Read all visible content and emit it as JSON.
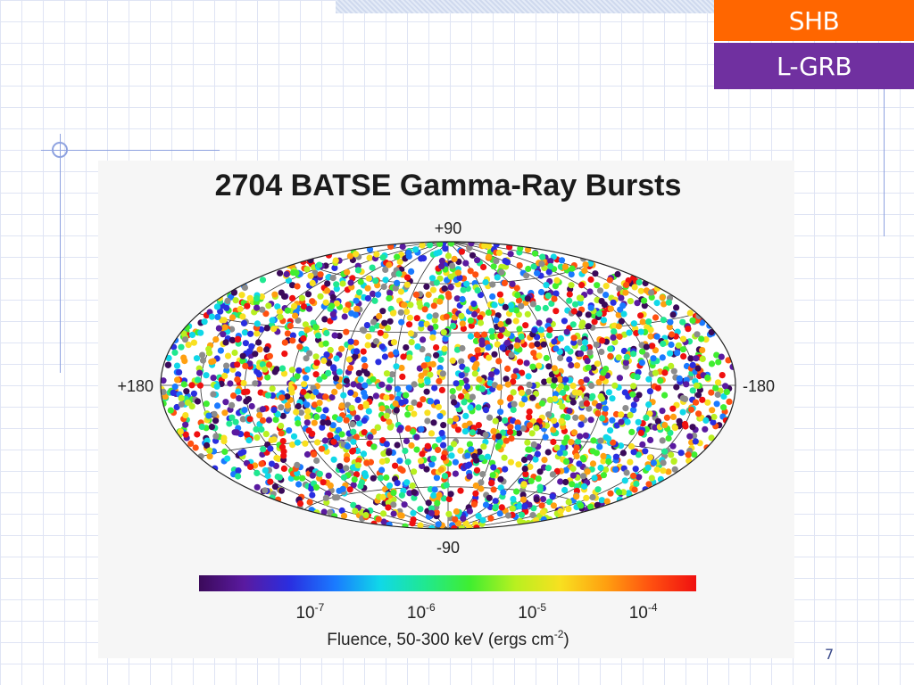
{
  "tags": {
    "shb": "SHB",
    "lgrb": "L-GRB"
  },
  "slide_number": "7",
  "colors": {
    "shb": "#ff6600",
    "lgrb": "#7030a0"
  },
  "chart_data": {
    "type": "scatter",
    "projection": "hammer-aitoff all-sky map (galactic coordinates)",
    "title": "2704 BATSE Gamma-Ray Bursts",
    "point_count": 2704,
    "labels": {
      "north": "+90",
      "south": "-90",
      "left": "+180",
      "right": "-180"
    },
    "axes": {
      "longitude_range": [
        180,
        -180
      ],
      "latitude_range": [
        -90,
        90
      ]
    },
    "grid": true,
    "colorbar": {
      "label_prefix": "Fluence, 50-300 keV (ergs cm",
      "label_exp": "-2",
      "label_suffix": ")",
      "scale": "log",
      "range": [
        1e-08,
        0.0003
      ],
      "ticks": [
        {
          "base": "10",
          "exp": "-7",
          "value": 1e-07
        },
        {
          "base": "10",
          "exp": "-6",
          "value": 1e-06
        },
        {
          "base": "10",
          "exp": "-5",
          "value": 1e-05
        },
        {
          "base": "10",
          "exp": "-4",
          "value": 0.0001
        }
      ],
      "colors": [
        "#3b0a5a",
        "#5a1aa0",
        "#2a2ee0",
        "#1a7aff",
        "#10d8e8",
        "#20e890",
        "#40ee30",
        "#b8f020",
        "#f8e020",
        "#ffa010",
        "#ff5010",
        "#f01010"
      ]
    },
    "marker_colors": [
      "#3b0a5a",
      "#5a1aa0",
      "#2a2ee0",
      "#1a7aff",
      "#10d8e8",
      "#20e890",
      "#40ee30",
      "#b8f020",
      "#f8e020",
      "#ffa010",
      "#ff5010",
      "#f01010",
      "#8c8c8c"
    ],
    "distribution": "isotropic"
  }
}
